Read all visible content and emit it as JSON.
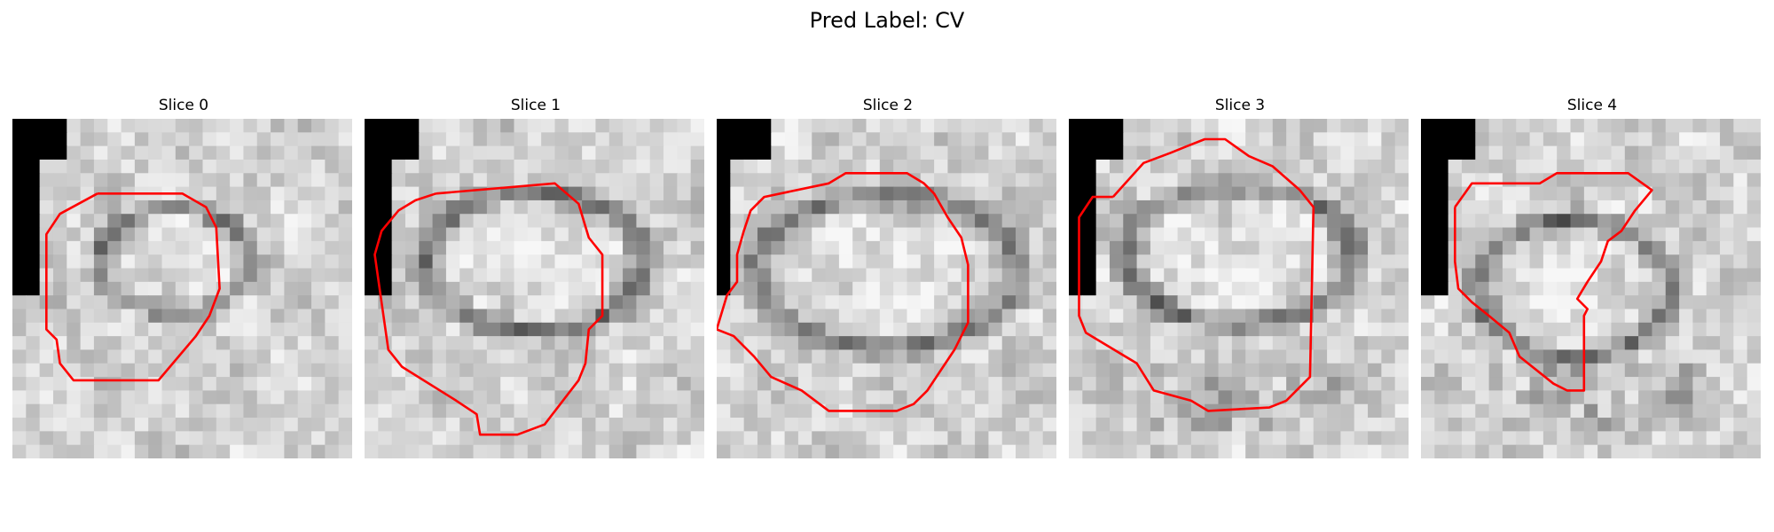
{
  "figure": {
    "title": "Pred Label: CV"
  },
  "panels": [
    {
      "title": "Slice 0",
      "seed": 11,
      "ring": [
        0.48,
        0.42,
        0.22,
        0.15,
        0.1
      ],
      "contour": [
        [
          0.25,
          0.22
        ],
        [
          0.5,
          0.22
        ],
        [
          0.57,
          0.26
        ],
        [
          0.6,
          0.32
        ],
        [
          0.61,
          0.5
        ],
        [
          0.58,
          0.58
        ],
        [
          0.54,
          0.64
        ],
        [
          0.43,
          0.77
        ],
        [
          0.18,
          0.77
        ],
        [
          0.14,
          0.72
        ],
        [
          0.13,
          0.65
        ],
        [
          0.1,
          0.62
        ],
        [
          0.1,
          0.34
        ],
        [
          0.14,
          0.28
        ]
      ]
    },
    {
      "title": "Slice 1",
      "seed": 23,
      "ring": [
        0.5,
        0.42,
        0.32,
        0.2,
        0.1
      ],
      "contour": [
        [
          0.21,
          0.22
        ],
        [
          0.56,
          0.19
        ],
        [
          0.63,
          0.25
        ],
        [
          0.66,
          0.35
        ],
        [
          0.7,
          0.4
        ],
        [
          0.7,
          0.58
        ],
        [
          0.66,
          0.62
        ],
        [
          0.65,
          0.72
        ],
        [
          0.63,
          0.77
        ],
        [
          0.53,
          0.9
        ],
        [
          0.45,
          0.93
        ],
        [
          0.34,
          0.93
        ],
        [
          0.33,
          0.87
        ],
        [
          0.27,
          0.83
        ],
        [
          0.11,
          0.73
        ],
        [
          0.07,
          0.68
        ],
        [
          0.03,
          0.4
        ],
        [
          0.05,
          0.33
        ],
        [
          0.1,
          0.27
        ],
        [
          0.15,
          0.24
        ]
      ]
    },
    {
      "title": "Slice 2",
      "seed": 37,
      "ring": [
        0.5,
        0.45,
        0.38,
        0.22,
        0.1
      ],
      "contour": [
        [
          0.0,
          0.62
        ],
        [
          0.03,
          0.52
        ],
        [
          0.06,
          0.48
        ],
        [
          0.06,
          0.4
        ],
        [
          0.08,
          0.33
        ],
        [
          0.1,
          0.27
        ],
        [
          0.14,
          0.23
        ],
        [
          0.33,
          0.19
        ],
        [
          0.38,
          0.16
        ],
        [
          0.56,
          0.16
        ],
        [
          0.61,
          0.19
        ],
        [
          0.64,
          0.22
        ],
        [
          0.68,
          0.29
        ],
        [
          0.72,
          0.35
        ],
        [
          0.74,
          0.43
        ],
        [
          0.74,
          0.6
        ],
        [
          0.7,
          0.68
        ],
        [
          0.66,
          0.74
        ],
        [
          0.62,
          0.8
        ],
        [
          0.58,
          0.84
        ],
        [
          0.53,
          0.86
        ],
        [
          0.33,
          0.86
        ],
        [
          0.25,
          0.8
        ],
        [
          0.16,
          0.76
        ],
        [
          0.11,
          0.7
        ],
        [
          0.05,
          0.64
        ]
      ]
    },
    {
      "title": "Slice 3",
      "seed": 51,
      "ring": [
        0.5,
        0.4,
        0.33,
        0.2,
        0.1
      ],
      "contour": [
        [
          0.13,
          0.23
        ],
        [
          0.22,
          0.13
        ],
        [
          0.3,
          0.1
        ],
        [
          0.35,
          0.08
        ],
        [
          0.4,
          0.06
        ],
        [
          0.46,
          0.06
        ],
        [
          0.53,
          0.11
        ],
        [
          0.6,
          0.14
        ],
        [
          0.68,
          0.21
        ],
        [
          0.72,
          0.26
        ],
        [
          0.71,
          0.76
        ],
        [
          0.64,
          0.83
        ],
        [
          0.59,
          0.85
        ],
        [
          0.41,
          0.86
        ],
        [
          0.36,
          0.83
        ],
        [
          0.25,
          0.8
        ],
        [
          0.2,
          0.72
        ],
        [
          0.05,
          0.63
        ],
        [
          0.03,
          0.58
        ],
        [
          0.03,
          0.29
        ],
        [
          0.07,
          0.23
        ]
      ]
    },
    {
      "title": "Slice 4",
      "seed": 67,
      "ring": [
        0.45,
        0.5,
        0.28,
        0.2,
        0.1
      ],
      "contour": [
        [
          0.1,
          0.26
        ],
        [
          0.15,
          0.19
        ],
        [
          0.35,
          0.19
        ],
        [
          0.4,
          0.16
        ],
        [
          0.61,
          0.16
        ],
        [
          0.68,
          0.21
        ],
        [
          0.63,
          0.27
        ],
        [
          0.59,
          0.33
        ],
        [
          0.55,
          0.36
        ],
        [
          0.53,
          0.42
        ],
        [
          0.49,
          0.48
        ],
        [
          0.46,
          0.53
        ],
        [
          0.49,
          0.56
        ],
        [
          0.48,
          0.58
        ],
        [
          0.48,
          0.8
        ],
        [
          0.43,
          0.8
        ],
        [
          0.39,
          0.78
        ],
        [
          0.29,
          0.7
        ],
        [
          0.26,
          0.63
        ],
        [
          0.2,
          0.58
        ],
        [
          0.15,
          0.54
        ],
        [
          0.11,
          0.5
        ],
        [
          0.1,
          0.42
        ]
      ]
    }
  ]
}
